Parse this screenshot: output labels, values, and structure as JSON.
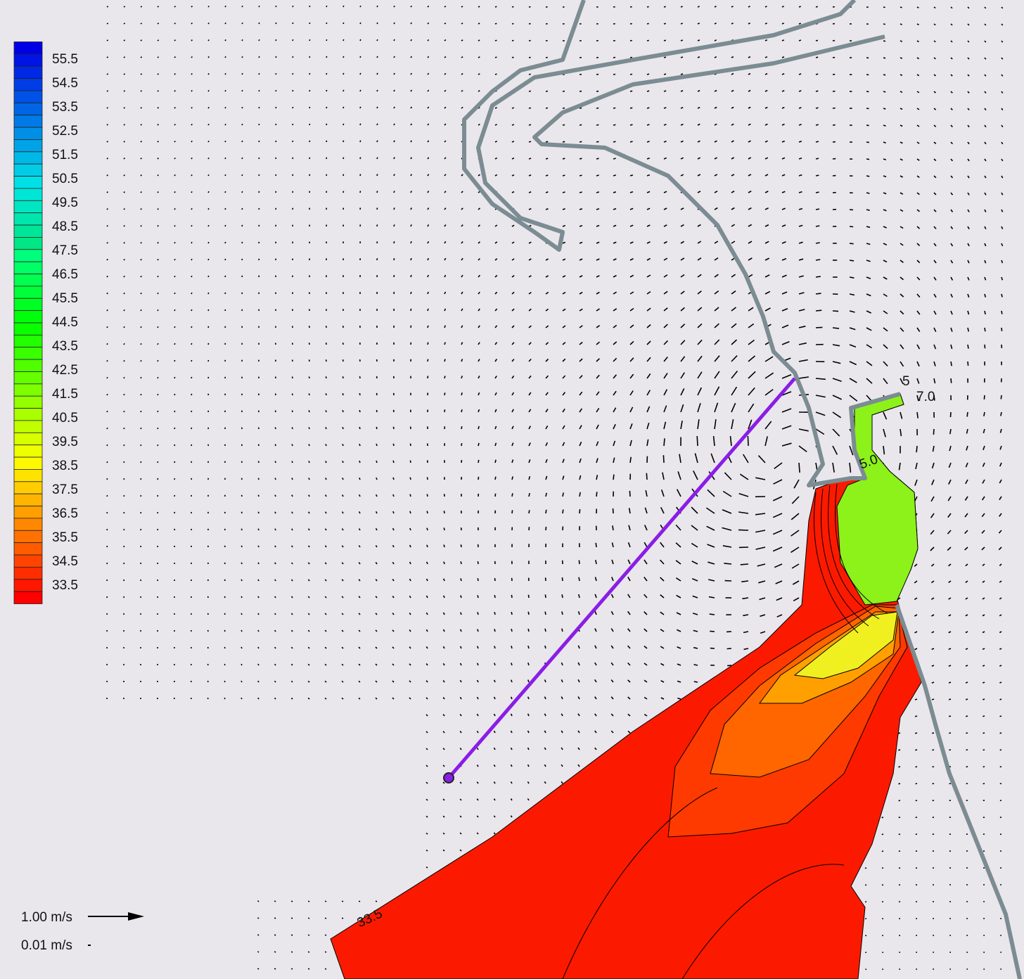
{
  "legend": {
    "levels": [
      55.5,
      54.5,
      53.5,
      52.5,
      51.5,
      50.5,
      49.5,
      48.5,
      47.5,
      46.5,
      45.5,
      44.5,
      43.5,
      42.5,
      41.5,
      40.5,
      39.5,
      38.5,
      37.5,
      36.5,
      35.5,
      34.5,
      33.5
    ]
  },
  "vector_scale": {
    "labels": [
      "1.00 m/s",
      "0.01 m/s"
    ]
  },
  "contour_labels": [
    "33.5",
    "5",
    "7.0",
    "5.0"
  ]
}
